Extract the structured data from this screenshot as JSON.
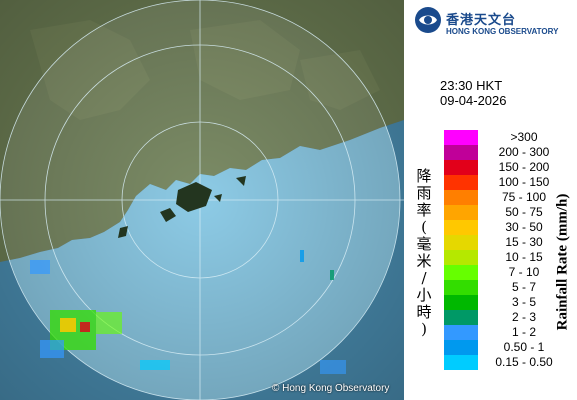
{
  "logo": {
    "emblem_icon": "hko-emblem-icon",
    "name_zh": "香港天文台",
    "name_en": "HONG KONG OBSERVATORY"
  },
  "timestamp": {
    "time": "23:30 HKT",
    "date": "09-04-2026"
  },
  "map": {
    "copyright": "© Hong Kong Observatory",
    "colors": {
      "land": "#6e7f55",
      "sea": "#43a8d6",
      "radar_range": "#8fd6f2",
      "ring": "#d8eef6"
    }
  },
  "legend": {
    "title_zh": "降雨率(毫米/小時)",
    "title_en": "Rainfall Rate (mm/h)",
    "items": [
      {
        "label": ">300",
        "color": "#ff00ff"
      },
      {
        "label": "200 - 300",
        "color": "#c00099"
      },
      {
        "label": "150 - 200",
        "color": "#e2001a"
      },
      {
        "label": "100 - 150",
        "color": "#ff3300"
      },
      {
        "label": "75 - 100",
        "color": "#ff7f00"
      },
      {
        "label": "50 - 75",
        "color": "#ffa500"
      },
      {
        "label": "30 - 50",
        "color": "#ffc800"
      },
      {
        "label": "15 - 30",
        "color": "#e5d800"
      },
      {
        "label": "10 - 15",
        "color": "#b5e800"
      },
      {
        "label": "7 - 10",
        "color": "#66ff00"
      },
      {
        "label": "5 - 7",
        "color": "#33dd00"
      },
      {
        "label": "3 - 5",
        "color": "#00b800"
      },
      {
        "label": "2 - 3",
        "color": "#009966"
      },
      {
        "label": "1 - 2",
        "color": "#3399ff"
      },
      {
        "label": "0.50 - 1",
        "color": "#0099ee"
      },
      {
        "label": "0.15 - 0.50",
        "color": "#00ccff"
      }
    ]
  }
}
